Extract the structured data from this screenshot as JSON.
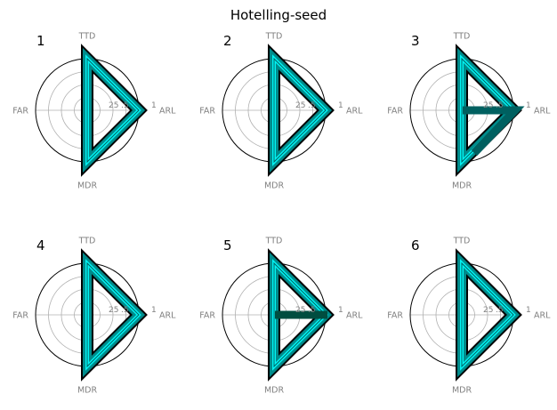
{
  "title": "Hotelling-seed",
  "chart_data": {
    "type": "radar",
    "title": "Hotelling-seed",
    "axes": [
      "ARL",
      "TTD",
      "FAR",
      "MDR"
    ],
    "radial_ticks": [
      "25",
      ".5",
      "1"
    ],
    "rlim": [
      0,
      1
    ],
    "grid": true,
    "colors": {
      "ring": "#b0b0b0",
      "outline": "#000000",
      "glow_dark": "#000000",
      "glow_mid": "#008b8b",
      "glow_light": "#00ffff",
      "seg_dark": "#006060",
      "seg_darker": "#004d40",
      "text": "#808080"
    },
    "panels": [
      {
        "label": "1",
        "values": [
          1,
          1,
          0,
          1
        ],
        "overlay": null
      },
      {
        "label": "2",
        "values": [
          1,
          1,
          0,
          1
        ],
        "overlay": null
      },
      {
        "label": "3",
        "values": [
          1,
          1,
          0,
          1
        ],
        "overlay": {
          "color": "#006060",
          "points": [
            [
              0.25,
              0
            ],
            [
              1,
              0
            ],
            [
              0.25,
              1
            ]
          ]
        }
      },
      {
        "label": "4",
        "values": [
          1,
          1,
          0,
          1
        ],
        "overlay": null
      },
      {
        "label": "5",
        "values": [
          1,
          1,
          0,
          1
        ],
        "overlay": {
          "color": "#004d40",
          "points": [
            [
              0.25,
              0
            ],
            [
              1,
              0
            ]
          ]
        }
      },
      {
        "label": "6",
        "values": [
          1,
          1,
          0,
          1
        ],
        "overlay": null
      }
    ]
  }
}
